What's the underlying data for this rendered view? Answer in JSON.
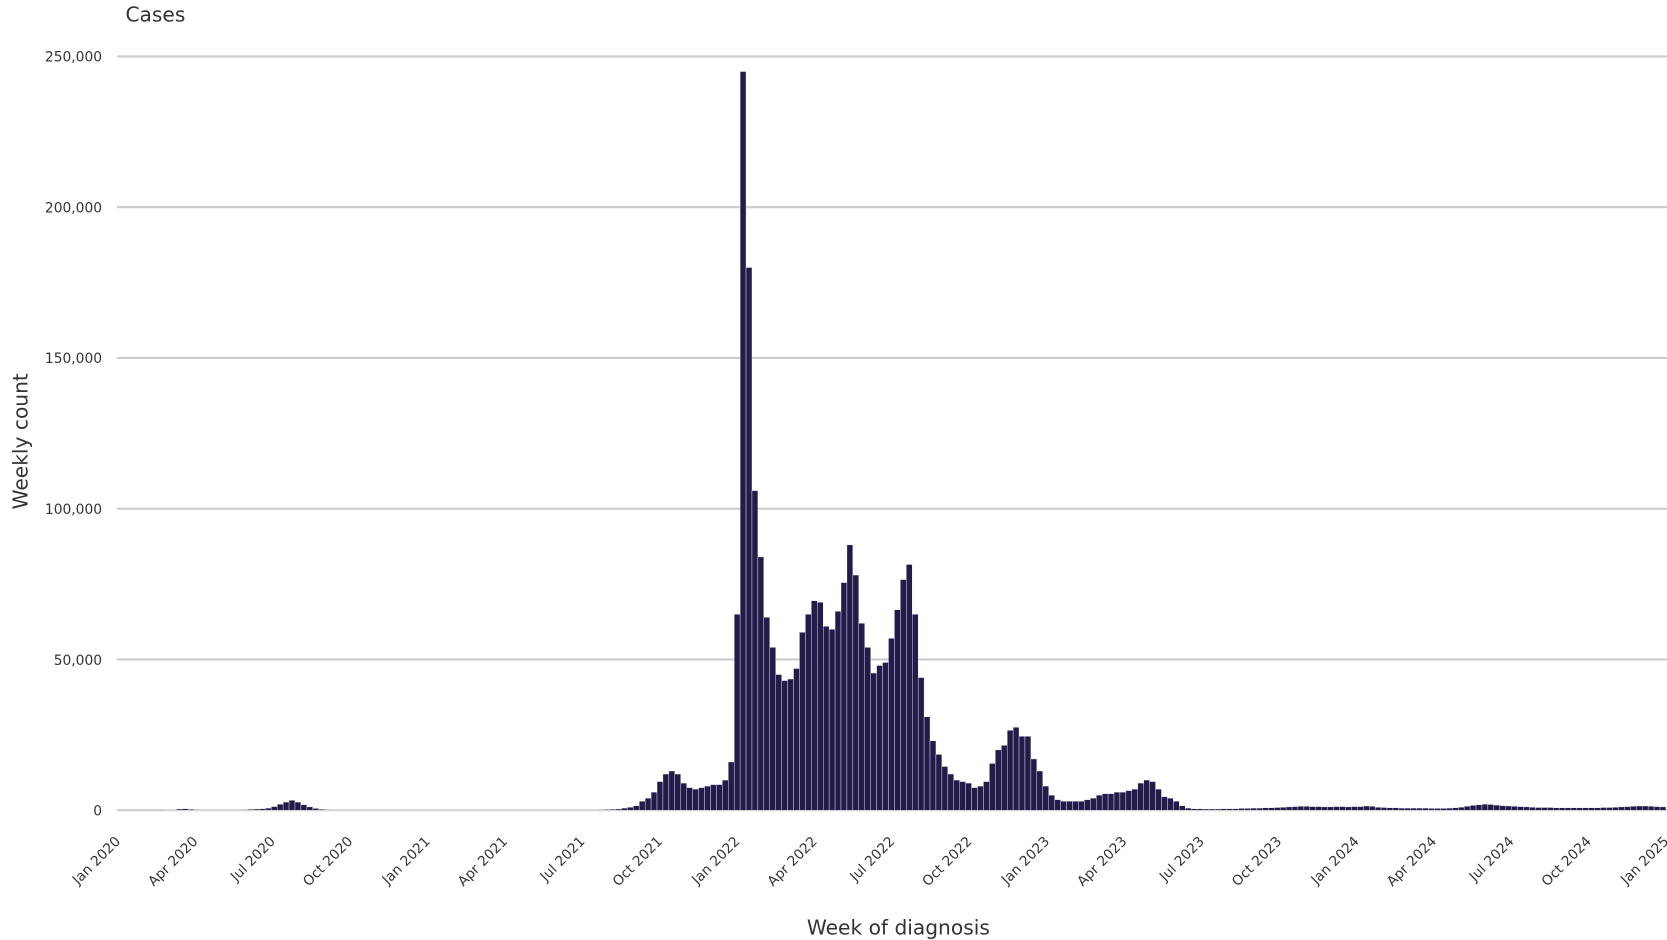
{
  "chart_data": {
    "type": "bar",
    "title": "Cases",
    "y_label": "Weekly count",
    "x_label": "Week of diagnosis",
    "color": "#221c4b",
    "grid": true,
    "xlim": [
      0,
      261
    ],
    "ylim": [
      0,
      250000
    ],
    "yticks": [
      0,
      {
        "value": 50000,
        "label": "50,000"
      },
      {
        "value": 100000,
        "label": "100,000"
      },
      {
        "value": 150000,
        "label": "150,000"
      },
      {
        "value": 200000,
        "label": "200,000"
      },
      {
        "value": 250000,
        "label": "250,000"
      }
    ],
    "xticks": [
      {
        "value": 0,
        "label": "Jan 2020"
      },
      {
        "value": 13.04,
        "label": "Apr 2020"
      },
      {
        "value": 26.09,
        "label": "Jul 2020"
      },
      {
        "value": 39.13,
        "label": "Oct 2020"
      },
      {
        "value": 52.18,
        "label": "Jan 2021"
      },
      {
        "value": 65.22,
        "label": "Apr 2021"
      },
      {
        "value": 78.26,
        "label": "Jul 2021"
      },
      {
        "value": 91.31,
        "label": "Oct 2021"
      },
      {
        "value": 104.35,
        "label": "Jan 2022"
      },
      {
        "value": 117.39,
        "label": "Apr 2022"
      },
      {
        "value": 130.44,
        "label": "Jul 2022"
      },
      {
        "value": 143.48,
        "label": "Oct 2022"
      },
      {
        "value": 156.53,
        "label": "Jan 2023"
      },
      {
        "value": 169.57,
        "label": "Apr 2023"
      },
      {
        "value": 182.61,
        "label": "Jul 2023"
      },
      {
        "value": 195.66,
        "label": "Oct 2023"
      },
      {
        "value": 208.7,
        "label": "Jan 2024"
      },
      {
        "value": 221.74,
        "label": "Apr 2024"
      },
      {
        "value": 234.79,
        "label": "Jul 2024"
      },
      {
        "value": 247.83,
        "label": "Oct 2024"
      },
      {
        "value": 260.88,
        "label": "Jan 2025"
      }
    ],
    "x": [
      0,
      1,
      2,
      3,
      4,
      5,
      6,
      7,
      8,
      9,
      10,
      11,
      12,
      13,
      14,
      15,
      16,
      17,
      18,
      19,
      20,
      21,
      22,
      23,
      24,
      25,
      26,
      27,
      28,
      29,
      30,
      31,
      32,
      33,
      34,
      35,
      36,
      37,
      38,
      39,
      40,
      41,
      42,
      43,
      44,
      45,
      46,
      47,
      48,
      49,
      50,
      51,
      52,
      53,
      54,
      55,
      56,
      57,
      58,
      59,
      60,
      61,
      62,
      63,
      64,
      65,
      66,
      67,
      68,
      69,
      70,
      71,
      72,
      73,
      74,
      75,
      76,
      77,
      78,
      79,
      80,
      81,
      82,
      83,
      84,
      85,
      86,
      87,
      88,
      89,
      90,
      91,
      92,
      93,
      94,
      95,
      96,
      97,
      98,
      99,
      100,
      101,
      102,
      103,
      104,
      105,
      106,
      107,
      108,
      109,
      110,
      111,
      112,
      113,
      114,
      115,
      116,
      117,
      118,
      119,
      120,
      121,
      122,
      123,
      124,
      125,
      126,
      127,
      128,
      129,
      130,
      131,
      132,
      133,
      134,
      135,
      136,
      137,
      138,
      139,
      140,
      141,
      142,
      143,
      144,
      145,
      146,
      147,
      148,
      149,
      150,
      151,
      152,
      153,
      154,
      155,
      156,
      157,
      158,
      159,
      160,
      161,
      162,
      163,
      164,
      165,
      166,
      167,
      168,
      169,
      170,
      171,
      172,
      173,
      174,
      175,
      176,
      177,
      178,
      179,
      180,
      181,
      182,
      183,
      184,
      185,
      186,
      187,
      188,
      189,
      190,
      191,
      192,
      193,
      194,
      195,
      196,
      197,
      198,
      199,
      200,
      201,
      202,
      203,
      204,
      205,
      206,
      207,
      208,
      209,
      210,
      211,
      212,
      213,
      214,
      215,
      216,
      217,
      218,
      219,
      220,
      221,
      222,
      223,
      224,
      225,
      226,
      227,
      228,
      229,
      230,
      231,
      232,
      233,
      234,
      235,
      236,
      237,
      238,
      239,
      240,
      241,
      242,
      243,
      244,
      245,
      246,
      247,
      248,
      249,
      250,
      251,
      252,
      253,
      254,
      255,
      256,
      257,
      258,
      259,
      260
    ],
    "values": [
      0,
      0,
      0,
      0,
      0,
      0,
      0,
      0,
      50,
      150,
      400,
      500,
      300,
      200,
      150,
      100,
      100,
      100,
      100,
      100,
      150,
      200,
      300,
      400,
      500,
      700,
      1200,
      2000,
      2700,
      3300,
      2700,
      1800,
      1100,
      600,
      300,
      200,
      100,
      50,
      50,
      50,
      50,
      50,
      50,
      50,
      50,
      50,
      50,
      50,
      50,
      50,
      50,
      50,
      50,
      50,
      50,
      50,
      50,
      50,
      50,
      50,
      50,
      50,
      50,
      50,
      50,
      50,
      50,
      50,
      50,
      50,
      50,
      50,
      50,
      50,
      50,
      50,
      50,
      100,
      100,
      150,
      150,
      200,
      250,
      300,
      400,
      700,
      1000,
      1500,
      3000,
      4000,
      6000,
      9500,
      12000,
      13000,
      12000,
      9000,
      7500,
      7000,
      7500,
      8000,
      8500,
      8500,
      10000,
      16000,
      65000,
      245000,
      180000,
      106000,
      84000,
      64000,
      54000,
      45000,
      43000,
      43500,
      47000,
      59000,
      65000,
      69500,
      69000,
      61000,
      60000,
      66000,
      75500,
      88000,
      78000,
      62000,
      54000,
      45500,
      48000,
      49000,
      57000,
      66500,
      76500,
      81500,
      65000,
      44000,
      31000,
      23000,
      18500,
      14500,
      12000,
      10000,
      9500,
      9000,
      7500,
      8000,
      9500,
      15500,
      20000,
      21500,
      26500,
      27500,
      24500,
      24500,
      17000,
      13000,
      8000,
      5000,
      3500,
      3000,
      3000,
      3000,
      3000,
      3500,
      4000,
      5000,
      5500,
      5500,
      6000,
      6000,
      6500,
      7000,
      9000,
      10000,
      9500,
      7000,
      4500,
      4000,
      3000,
      1500,
      700,
      500,
      500,
      400,
      400,
      400,
      500,
      500,
      500,
      600,
      600,
      700,
      700,
      800,
      800,
      900,
      1000,
      1100,
      1200,
      1300,
      1300,
      1200,
      1200,
      1100,
      1100,
      1200,
      1200,
      1100,
      1200,
      1200,
      1400,
      1300,
      1000,
      900,
      800,
      800,
      700,
      700,
      700,
      700,
      700,
      600,
      600,
      600,
      700,
      800,
      1000,
      1300,
      1600,
      1800,
      2000,
      1900,
      1700,
      1500,
      1400,
      1300,
      1200,
      1100,
      1000,
      900,
      900,
      900,
      800,
      800,
      800,
      800,
      800,
      800,
      800,
      800,
      900,
      900,
      1000,
      1100,
      1200,
      1300,
      1400,
      1400,
      1300,
      1200,
      1100
    ]
  }
}
